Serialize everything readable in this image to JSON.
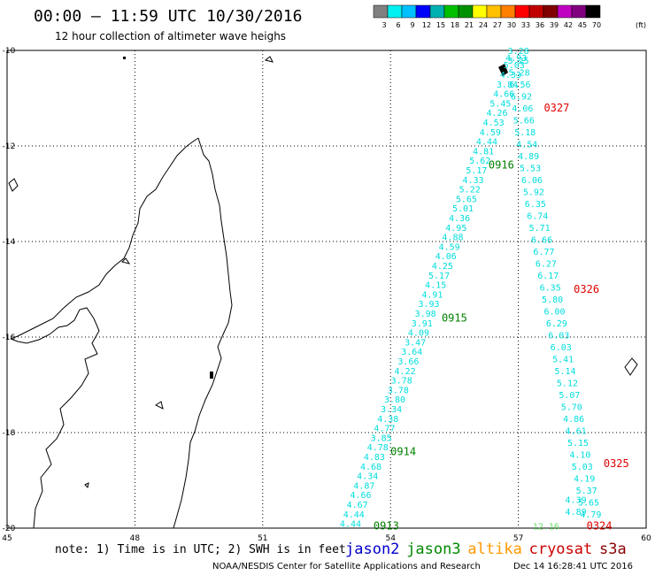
{
  "header": {
    "title": "00:00 – 11:59 UTC 10/30/2016",
    "subtitle": "12 hour collection of altimeter wave heighs",
    "colorbar": {
      "unit": "(ft)",
      "labels": [
        "3",
        "6",
        "9",
        "12",
        "15",
        "18",
        "21",
        "24",
        "27",
        "30",
        "33",
        "36",
        "39",
        "42",
        "45",
        "70"
      ],
      "colors": [
        "#808080",
        "#00f0f0",
        "#00c0ff",
        "#0000ff",
        "#00b0b0",
        "#00c000",
        "#009000",
        "#ffff00",
        "#ffc000",
        "#ff8000",
        "#ff0000",
        "#c00000",
        "#800000",
        "#c000c0",
        "#800080",
        "#000000"
      ]
    }
  },
  "chart_data": {
    "type": "scatter",
    "title": "00:00 – 11:59 UTC 10/30/2016",
    "subtitle": "12 hour collection of altimeter wave heighs",
    "x_ticks": [
      "45",
      "48",
      "51",
      "54",
      "57",
      "60"
    ],
    "y_ticks": [
      "-10",
      "-12",
      "-14",
      "-16",
      "-18",
      "-20"
    ],
    "xlim": [
      45,
      60
    ],
    "ylim": [
      -20,
      -10
    ],
    "tracks": [
      {
        "color": "#00dddd",
        "lat": [
          -10.0,
          -10.15,
          -10.3,
          -10.5,
          -10.7,
          -10.9,
          -11.1,
          -11.3,
          -11.5,
          -11.7,
          -11.9,
          -12.1,
          -12.3,
          -12.5,
          -12.7,
          -12.9,
          -13.1,
          -13.3,
          -13.5,
          -13.7,
          -13.9,
          -14.1,
          -14.3,
          -14.5,
          -14.7,
          -14.9,
          -15.1,
          -15.3,
          -15.5,
          -15.7,
          -15.9,
          -16.1,
          -16.3,
          -16.5,
          -16.7,
          -16.9,
          -17.1,
          -17.3,
          -17.5,
          -17.7,
          -17.9,
          -18.1,
          -18.3,
          -18.5,
          -18.7,
          -18.9,
          -19.1,
          -19.3,
          -19.5,
          -19.7,
          -19.9
        ],
        "lon": [
          57.0,
          56.95,
          56.9,
          56.82,
          56.74,
          56.66,
          56.58,
          56.5,
          56.42,
          56.34,
          56.26,
          56.18,
          56.1,
          56.02,
          55.94,
          55.86,
          55.78,
          55.7,
          55.62,
          55.54,
          55.46,
          55.38,
          55.3,
          55.22,
          55.14,
          55.06,
          54.98,
          54.9,
          54.82,
          54.74,
          54.66,
          54.58,
          54.5,
          54.42,
          54.34,
          54.26,
          54.18,
          54.1,
          54.02,
          53.94,
          53.86,
          53.78,
          53.7,
          53.62,
          53.54,
          53.46,
          53.38,
          53.3,
          53.22,
          53.14,
          53.06
        ],
        "values": [
          "3.28",
          "4.93",
          "5.03",
          "4.33",
          "3.84",
          "4.66",
          "5.45",
          "4.26",
          "4.53",
          "4.59",
          "4.44",
          "4.81",
          "5.62",
          "5.17",
          "4.33",
          "5.22",
          "5.65",
          "5.01",
          "4.36",
          "4.95",
          "4.88",
          "4.59",
          "4.06",
          "4.25",
          "5.17",
          "4.15",
          "4.91",
          "3.93",
          "3.98",
          "3.91",
          "4.09",
          "3.47",
          "3.64",
          "3.66",
          "4.22",
          "3.78",
          "3.78",
          "3.80",
          "3.34",
          "4.38",
          "4.77",
          "3.85",
          "4.78",
          "4.83",
          "4.68",
          "4.34",
          "4.87",
          "4.66",
          "4.67",
          "4.44",
          "4.44"
        ],
        "times": [
          {
            "label": "0916",
            "lat": -12.4,
            "lon": 56.6
          },
          {
            "label": "0915",
            "lat": -15.6,
            "lon": 55.5
          },
          {
            "label": "0914",
            "lat": -18.4,
            "lon": 54.3
          },
          {
            "label": "0913",
            "lat": -19.95,
            "lon": 53.9
          }
        ],
        "time_color": "#008000"
      },
      {
        "color": "#00dddd",
        "lat": [
          -10.2,
          -10.45,
          -10.7,
          -10.95,
          -11.2,
          -11.45,
          -11.7,
          -11.95,
          -12.2,
          -12.45,
          -12.7,
          -12.95,
          -13.2,
          -13.45,
          -13.7,
          -13.95,
          -14.2,
          -14.45,
          -14.7,
          -14.95,
          -15.2,
          -15.45,
          -15.7,
          -15.95,
          -16.2,
          -16.45,
          -16.7,
          -16.95,
          -17.2,
          -17.45,
          -17.7,
          -17.95,
          -18.2,
          -18.45,
          -18.7,
          -18.95,
          -19.2,
          -19.45,
          -19.7
        ],
        "lon": [
          57.0,
          57.02,
          57.04,
          57.07,
          57.1,
          57.13,
          57.16,
          57.2,
          57.24,
          57.28,
          57.32,
          57.36,
          57.4,
          57.45,
          57.5,
          57.55,
          57.6,
          57.65,
          57.7,
          57.75,
          57.8,
          57.85,
          57.9,
          57.95,
          58.0,
          58.05,
          58.1,
          58.15,
          58.2,
          58.25,
          58.3,
          58.35,
          58.4,
          58.45,
          58.5,
          58.55,
          58.6,
          58.65,
          58.7
        ],
        "values": [
          "3.25",
          "5.28",
          "6.56",
          "6.92",
          "4.06",
          "5.66",
          "5.18",
          "4.54",
          "4.89",
          "5.53",
          "6.06",
          "5.92",
          "6.35",
          "6.74",
          "5.71",
          "6.66",
          "6.77",
          "6.27",
          "6.17",
          "6.35",
          "5.80",
          "6.00",
          "6.29",
          "6.03",
          "6.03",
          "5.41",
          "5.14",
          "5.12",
          "5.07",
          "5.70",
          "4.86",
          "4.61",
          "5.15",
          "4.10",
          "5.03",
          "4.19",
          "5.37",
          "5.65",
          "4.79"
        ],
        "times": [
          {
            "label": "0327",
            "lat": -11.2,
            "lon": 57.9
          },
          {
            "label": "0326",
            "lat": -15.0,
            "lon": 58.6
          },
          {
            "label": "0325",
            "lat": -18.65,
            "lon": 59.3
          },
          {
            "label": "0324",
            "lat": -19.95,
            "lon": 58.9
          }
        ],
        "time_color": "#e00000"
      }
    ],
    "extra_values": [
      {
        "value": "4.39",
        "lat": -19.4,
        "lon": 58.35,
        "color": "#00dddd"
      },
      {
        "value": "4.89",
        "lat": -19.65,
        "lon": 58.35,
        "color": "#00dddd"
      },
      {
        "value": "12.16",
        "lat": -19.95,
        "lon": 57.65,
        "color": "#66dd66"
      }
    ]
  },
  "footer": {
    "note": "note: 1) Time is in UTC; 2) SWH is in feet",
    "satellites": [
      {
        "name": "jason2",
        "color": "#0000cc"
      },
      {
        "name": "jason3",
        "color": "#008800"
      },
      {
        "name": "altika",
        "color": "#ff9900"
      },
      {
        "name": "cryosat",
        "color": "#cc0000"
      },
      {
        "name": "s3a",
        "color": "#880000"
      }
    ],
    "credit": "NOAA/NESDIS Center for Satellite Applications and Research",
    "timestamp": "Dec 14 16:28:41 UTC 2016"
  }
}
